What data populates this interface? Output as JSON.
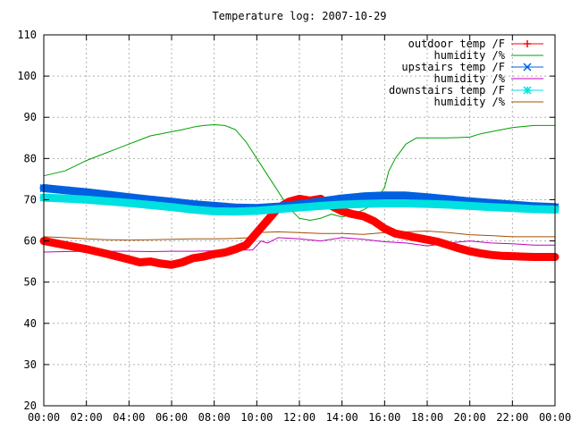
{
  "chart_data": {
    "type": "line",
    "title": "Temperature log: 2007-10-29",
    "xlabel": "",
    "ylabel": "",
    "xlim": [
      0,
      24
    ],
    "ylim": [
      20,
      110
    ],
    "grid": true,
    "legend_position": "top-right",
    "x_ticks": [
      "00:00",
      "02:00",
      "04:00",
      "06:00",
      "08:00",
      "10:00",
      "12:00",
      "14:00",
      "16:00",
      "18:00",
      "20:00",
      "22:00",
      "00:00"
    ],
    "y_ticks": [
      20,
      30,
      40,
      50,
      60,
      70,
      80,
      90,
      100,
      110
    ],
    "series": [
      {
        "name": "outdoor temp /F",
        "color": "#ff0000",
        "marker": "plus",
        "x": [
          0,
          1,
          2,
          3,
          4,
          4.5,
          5,
          5.5,
          6,
          6.5,
          7,
          7.5,
          8,
          8.5,
          9,
          9.5,
          10,
          10.5,
          11,
          11.5,
          12,
          12.5,
          13,
          13.5,
          14,
          14.5,
          15,
          15.5,
          16,
          16.5,
          17,
          17.5,
          18,
          18.5,
          19,
          19.5,
          20,
          20.5,
          21,
          21.5,
          22,
          22.5,
          23,
          23.5,
          24
        ],
        "values": [
          60,
          59,
          58,
          56.8,
          55.5,
          54.8,
          55,
          54.5,
          54.2,
          54.8,
          55.8,
          56.2,
          56.8,
          57.2,
          58,
          59,
          62,
          65,
          68,
          69.5,
          70.2,
          69.8,
          70.2,
          68.5,
          67.2,
          66.5,
          66,
          64.8,
          63,
          61.8,
          61.3,
          60.8,
          60.3,
          59.8,
          59,
          58.2,
          57.5,
          57,
          56.6,
          56.4,
          56.3,
          56.2,
          56.1,
          56.1,
          56.1
        ]
      },
      {
        "name": "humidity /%",
        "color": "#00a000",
        "marker": "none",
        "x": [
          0,
          1,
          2,
          3,
          4,
          4.5,
          5,
          5.5,
          6,
          6.5,
          7,
          7.5,
          8,
          8.5,
          9,
          9.5,
          10,
          10.5,
          11,
          11.5,
          12,
          12.5,
          13,
          13.5,
          14,
          14.5,
          15,
          15.5,
          16,
          16.2,
          16.5,
          17,
          17.5,
          18,
          19,
          20,
          20.5,
          21,
          22,
          23,
          24
        ],
        "values": [
          75.8,
          77,
          79.5,
          81.5,
          83.5,
          84.5,
          85.5,
          86,
          86.5,
          87,
          87.6,
          88,
          88.2,
          88,
          87,
          84,
          80,
          76,
          72,
          68,
          65.5,
          65,
          65.5,
          66.5,
          65.8,
          66.5,
          67.5,
          69,
          73,
          77,
          80,
          83.5,
          85,
          85,
          85,
          85.2,
          86,
          86.5,
          87.5,
          88,
          88
        ]
      },
      {
        "name": "upstairs temp /F",
        "color": "#0060e0",
        "marker": "cross",
        "x": [
          0,
          1,
          2,
          3,
          4,
          5,
          6,
          7,
          8,
          9,
          10,
          11,
          12,
          13,
          14,
          15,
          16,
          17,
          18,
          19,
          20,
          21,
          22,
          23,
          24
        ],
        "values": [
          72.8,
          72.3,
          71.8,
          71.2,
          70.6,
          70,
          69.5,
          68.9,
          68.5,
          68.1,
          68,
          68.3,
          68.9,
          69.6,
          70.3,
          70.8,
          71,
          71,
          70.6,
          70.1,
          69.6,
          69.2,
          68.8,
          68.4,
          68.2
        ]
      },
      {
        "name": "humidity /%",
        "color": "#c000c0",
        "marker": "none",
        "x": [
          0,
          1,
          2,
          3,
          4,
          5,
          6,
          7,
          8,
          9,
          9.8,
          10.2,
          10.5,
          11,
          12,
          13,
          14,
          15,
          16,
          17,
          18,
          19,
          20,
          21,
          22,
          23,
          24
        ],
        "values": [
          57.3,
          57.4,
          57.5,
          57.5,
          57.5,
          57.4,
          57.5,
          57.5,
          57.6,
          57.8,
          57.8,
          60,
          59.5,
          60.8,
          60.5,
          60,
          60.8,
          60.4,
          59.8,
          59.5,
          58.8,
          59.5,
          60,
          59.5,
          59.3,
          59,
          59
        ]
      },
      {
        "name": "downstairs temp /F",
        "color": "#00e0e0",
        "marker": "star",
        "x": [
          0,
          1,
          2,
          3,
          4,
          5,
          6,
          7,
          8,
          9,
          10,
          11,
          12,
          13,
          14,
          15,
          16,
          17,
          18,
          19,
          20,
          21,
          22,
          23,
          24
        ],
        "values": [
          70.5,
          70.3,
          70,
          69.6,
          69.2,
          68.7,
          68.2,
          67.6,
          67.2,
          67.1,
          67.3,
          67.7,
          68.1,
          68.5,
          68.8,
          69,
          69.1,
          69.1,
          69,
          68.8,
          68.5,
          68.2,
          68,
          67.7,
          67.6
        ]
      },
      {
        "name": "humidity /%",
        "color": "#a05000",
        "marker": "none",
        "x": [
          0,
          1,
          2,
          3,
          4,
          5,
          6,
          7,
          8,
          9,
          9.7,
          10,
          11,
          12,
          13,
          14,
          15,
          16,
          17,
          18,
          19,
          20,
          21,
          22,
          23,
          24
        ],
        "values": [
          61,
          60.8,
          60.5,
          60.3,
          60.2,
          60.3,
          60.4,
          60.5,
          60.5,
          60.6,
          60.8,
          62,
          62.2,
          62,
          61.8,
          61.8,
          61.6,
          62,
          62.2,
          62.4,
          62,
          61.5,
          61.3,
          61,
          61,
          61
        ]
      }
    ]
  }
}
